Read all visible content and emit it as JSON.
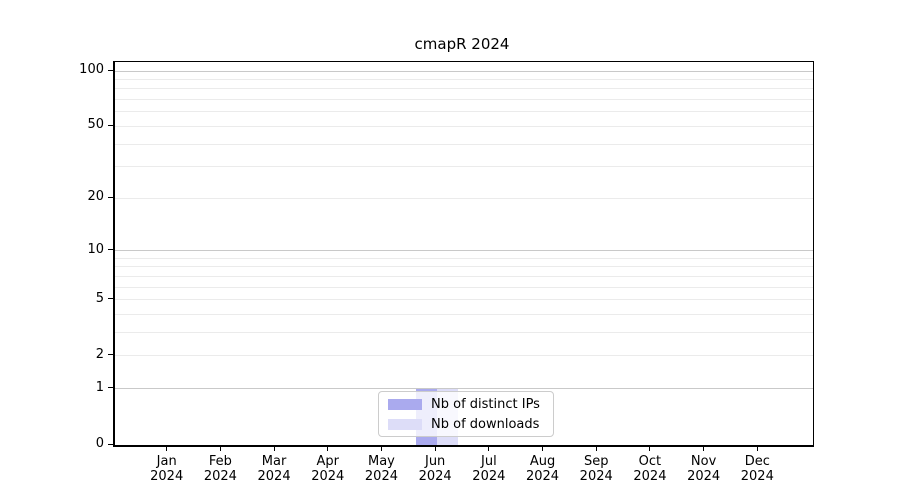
{
  "title": "cmapR 2024",
  "chart_data": {
    "type": "bar",
    "title": "cmapR 2024",
    "categories": [
      "Jan 2024",
      "Feb 2024",
      "Mar 2024",
      "Apr 2024",
      "May 2024",
      "Jun 2024",
      "Jul 2024",
      "Aug 2024",
      "Sep 2024",
      "Oct 2024",
      "Nov 2024",
      "Dec 2024"
    ],
    "series": [
      {
        "name": "Nb of distinct IPs",
        "color": "#aaaaee",
        "values": [
          0,
          0,
          0,
          0,
          0,
          1,
          0,
          0,
          0,
          0,
          0,
          0
        ]
      },
      {
        "name": "Nb of downloads",
        "color": "#ddddf8",
        "values": [
          0,
          0,
          0,
          0,
          0,
          1,
          0,
          0,
          0,
          0,
          0,
          0
        ]
      }
    ],
    "xlabel": "",
    "ylabel": "",
    "y_scale": "log1p",
    "ylim": [
      0,
      113
    ],
    "y_ticks_labeled": [
      0,
      1,
      2,
      5,
      10,
      20,
      50,
      100
    ],
    "y_gridlines_major": [
      1,
      10,
      100
    ],
    "y_gridlines_minor": [
      2,
      3,
      4,
      5,
      6,
      7,
      8,
      9,
      20,
      30,
      40,
      50,
      60,
      70,
      80,
      90
    ],
    "grid": true,
    "legend_position": "lower center",
    "colors": {
      "grid_major": "#c9c9c9",
      "grid_minor": "#ebebeb",
      "axis": "#000000",
      "text": "#000000",
      "background": "#ffffff"
    }
  }
}
